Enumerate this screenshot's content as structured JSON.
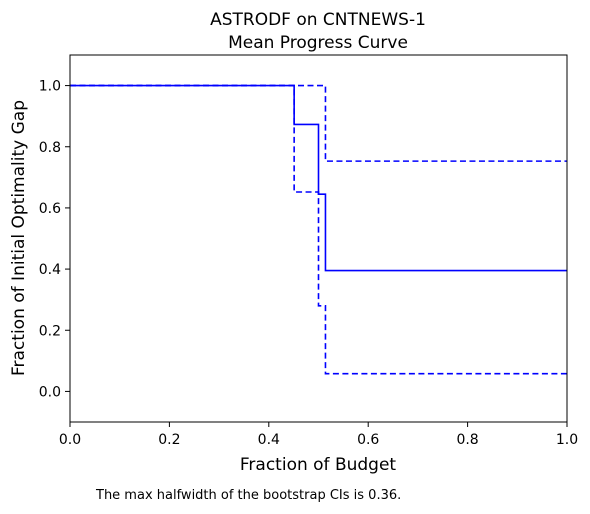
{
  "chart_data": {
    "type": "line",
    "title": "ASTRODF on CNTNEWS-1",
    "subtitle": "Mean Progress Curve",
    "xlabel": "Fraction of Budget",
    "ylabel": "Fraction of Initial Optimality Gap",
    "xlim": [
      0.0,
      1.0
    ],
    "ylim": [
      -0.1,
      1.1
    ],
    "xticks": [
      "0.0",
      "0.2",
      "0.4",
      "0.6",
      "0.8",
      "1.0"
    ],
    "yticks": [
      "0.0",
      "0.2",
      "0.4",
      "0.6",
      "0.8",
      "1.0"
    ],
    "grid": false,
    "color": "#0000ff",
    "series": [
      {
        "style": "solid",
        "step": "post",
        "points": [
          [
            0.0,
            1.0
          ],
          [
            0.451,
            1.0
          ],
          [
            0.451,
            0.873
          ],
          [
            0.5,
            0.873
          ],
          [
            0.5,
            0.645
          ],
          [
            0.514,
            0.645
          ],
          [
            0.514,
            0.395
          ],
          [
            1.0,
            0.395
          ]
        ]
      },
      {
        "style": "dashed",
        "step": "post",
        "points": [
          [
            0.0,
            1.0
          ],
          [
            0.514,
            1.0
          ],
          [
            0.514,
            0.753
          ],
          [
            1.0,
            0.753
          ]
        ]
      },
      {
        "style": "dashed",
        "step": "post",
        "points": [
          [
            0.0,
            1.0
          ],
          [
            0.451,
            1.0
          ],
          [
            0.451,
            0.652
          ],
          [
            0.5,
            0.652
          ],
          [
            0.5,
            0.28
          ],
          [
            0.514,
            0.28
          ],
          [
            0.514,
            0.058
          ],
          [
            1.0,
            0.058
          ]
        ]
      }
    ]
  },
  "caption": "The max halfwidth of the bootstrap CIs is 0.36."
}
